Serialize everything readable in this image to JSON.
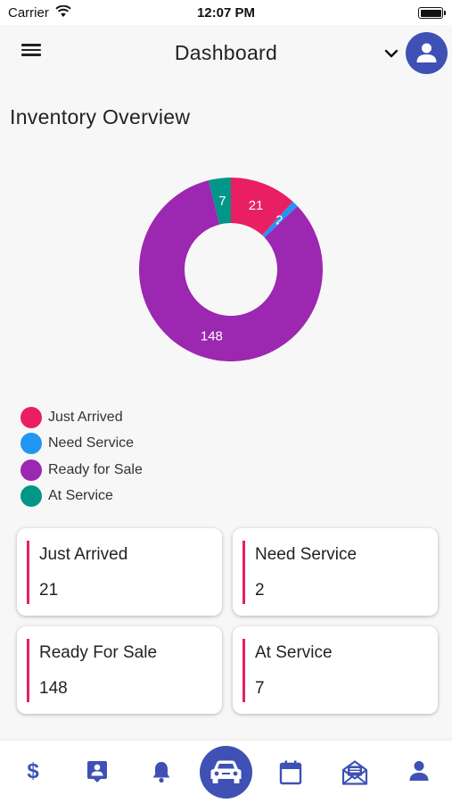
{
  "status_bar": {
    "carrier": "Carrier",
    "time": "12:07 PM"
  },
  "header": {
    "title": "Dashboard",
    "menu_icon": "hamburger-menu-icon",
    "dropdown_icon": "chevron-down-icon",
    "avatar_icon": "user-avatar-icon"
  },
  "section": {
    "title": "Inventory Overview"
  },
  "chart_data": {
    "type": "donut",
    "title": "",
    "segments": [
      {
        "name": "Just Arrived",
        "value": 21,
        "color": "#e91e63",
        "label": "21"
      },
      {
        "name": "Need Service",
        "value": 2,
        "color": "#2196f3",
        "label": "2"
      },
      {
        "name": "Ready for Sale",
        "value": 148,
        "color": "#9c27b0",
        "label": "148"
      },
      {
        "name": "At Service",
        "value": 7,
        "color": "#009688",
        "label": "7"
      }
    ],
    "legend_position": "bottom-left"
  },
  "legend": [
    {
      "label": "Just Arrived",
      "color": "#e91e63"
    },
    {
      "label": "Need Service",
      "color": "#2196f3"
    },
    {
      "label": "Ready for Sale",
      "color": "#9c27b0"
    },
    {
      "label": "At Service",
      "color": "#009688"
    }
  ],
  "cards": [
    {
      "title": "Just Arrived",
      "value": "21"
    },
    {
      "title": "Need Service",
      "value": "2"
    },
    {
      "title": "Ready For Sale",
      "value": "148"
    },
    {
      "title": "At Service",
      "value": "7"
    }
  ],
  "bottom_nav": {
    "items": [
      {
        "icon": "dollar-icon",
        "glyph": "$"
      },
      {
        "icon": "contact-card-icon"
      },
      {
        "icon": "bell-icon"
      },
      {
        "icon": "car-icon"
      },
      {
        "icon": "calendar-icon"
      },
      {
        "icon": "mail-icon"
      },
      {
        "icon": "person-icon"
      }
    ]
  },
  "colors": {
    "accent": "#3f51b5",
    "card_bar": "#e91e63",
    "background": "#f7f7f7"
  }
}
